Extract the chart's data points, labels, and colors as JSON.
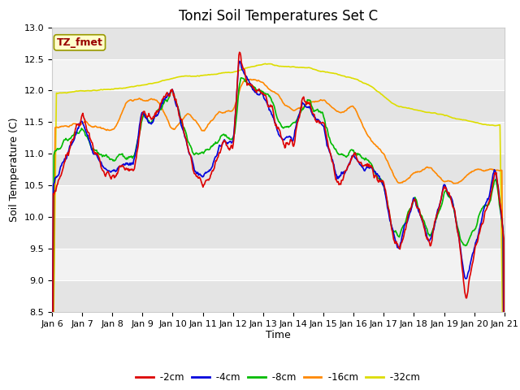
{
  "title": "Tonzi Soil Temperatures Set C",
  "xlabel": "Time",
  "ylabel": "Soil Temperature (C)",
  "ylim": [
    8.5,
    13.0
  ],
  "yticks": [
    8.5,
    9.0,
    9.5,
    10.0,
    10.5,
    11.0,
    11.5,
    12.0,
    12.5,
    13.0
  ],
  "x_tick_labels": [
    "Jan 6",
    "Jan 7",
    "Jan 8",
    "Jan 9",
    "Jan 10",
    "Jan 11",
    "Jan 12",
    "Jan 13",
    "Jan 14",
    "Jan 15",
    "Jan 16",
    "Jan 17",
    "Jan 18",
    "Jan 19",
    "Jan 20",
    "Jan 21"
  ],
  "annotation_text": "TZ_fmet",
  "annotation_color": "#990000",
  "annotation_bg": "#FFFFCC",
  "annotation_edge": "#999900",
  "line_colors": {
    "-2cm": "#DD0000",
    "-4cm": "#0000DD",
    "-8cm": "#00BB00",
    "-16cm": "#FF8800",
    "-32cm": "#DDDD00"
  },
  "legend_labels": [
    "-2cm",
    "-4cm",
    "-8cm",
    "-16cm",
    "-32cm"
  ],
  "fig_bg_color": "#FFFFFF",
  "plot_bg_light": "#F2F2F2",
  "plot_bg_dark": "#E4E4E4",
  "title_fontsize": 12,
  "label_fontsize": 9,
  "tick_fontsize": 8
}
